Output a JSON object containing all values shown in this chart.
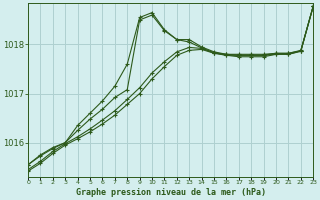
{
  "title": "Graphe pression niveau de la mer (hPa)",
  "background_color": "#d4eeee",
  "grid_color": "#aed0d0",
  "line_color": "#2d5a1b",
  "xlim": [
    0,
    23
  ],
  "ylim": [
    1015.3,
    1018.85
  ],
  "yticks": [
    1016,
    1017,
    1018
  ],
  "xticks": [
    0,
    1,
    2,
    3,
    4,
    5,
    6,
    7,
    8,
    9,
    10,
    11,
    12,
    13,
    14,
    15,
    16,
    17,
    18,
    19,
    20,
    21,
    22,
    23
  ],
  "line1_x": [
    0,
    1,
    2,
    3,
    4,
    5,
    6,
    7,
    8,
    9,
    10,
    11,
    12,
    13,
    14,
    15,
    16,
    17,
    18,
    19,
    20,
    21,
    22,
    23
  ],
  "line1_y": [
    1015.55,
    1015.75,
    1015.9,
    1016.0,
    1016.35,
    1016.6,
    1016.85,
    1017.15,
    1017.6,
    1018.55,
    1018.65,
    1018.3,
    1018.1,
    1018.1,
    1017.95,
    1017.85,
    1017.8,
    1017.78,
    1017.78,
    1017.78,
    1017.82,
    1017.82,
    1017.88,
    1018.78
  ],
  "line2_x": [
    0,
    1,
    2,
    3,
    4,
    5,
    6,
    7,
    8,
    9,
    10,
    11,
    12,
    13,
    14,
    15,
    16,
    17,
    18,
    19,
    20,
    21,
    22,
    23
  ],
  "line2_y": [
    1015.55,
    1015.73,
    1015.88,
    1016.0,
    1016.25,
    1016.48,
    1016.68,
    1016.92,
    1017.08,
    1018.5,
    1018.6,
    1018.28,
    1018.1,
    1018.05,
    1017.93,
    1017.83,
    1017.78,
    1017.75,
    1017.75,
    1017.75,
    1017.8,
    1017.8,
    1017.87,
    1018.78
  ],
  "line3_x": [
    0,
    1,
    2,
    3,
    4,
    5,
    6,
    7,
    8,
    9,
    10,
    11,
    12,
    13,
    14,
    15,
    16,
    17,
    18,
    19,
    20,
    21,
    22,
    23
  ],
  "line3_y": [
    1015.45,
    1015.62,
    1015.82,
    1015.98,
    1016.12,
    1016.28,
    1016.46,
    1016.65,
    1016.88,
    1017.12,
    1017.42,
    1017.65,
    1017.85,
    1017.94,
    1017.92,
    1017.83,
    1017.8,
    1017.8,
    1017.8,
    1017.8,
    1017.82,
    1017.82,
    1017.87,
    1018.78
  ],
  "line4_x": [
    0,
    1,
    2,
    3,
    4,
    5,
    6,
    7,
    8,
    9,
    10,
    11,
    12,
    13,
    14,
    15,
    16,
    17,
    18,
    19,
    20,
    21,
    22,
    23
  ],
  "line4_y": [
    1015.42,
    1015.58,
    1015.78,
    1015.95,
    1016.08,
    1016.22,
    1016.38,
    1016.56,
    1016.78,
    1017.0,
    1017.3,
    1017.55,
    1017.78,
    1017.88,
    1017.9,
    1017.82,
    1017.78,
    1017.78,
    1017.78,
    1017.78,
    1017.8,
    1017.8,
    1017.86,
    1018.78
  ]
}
